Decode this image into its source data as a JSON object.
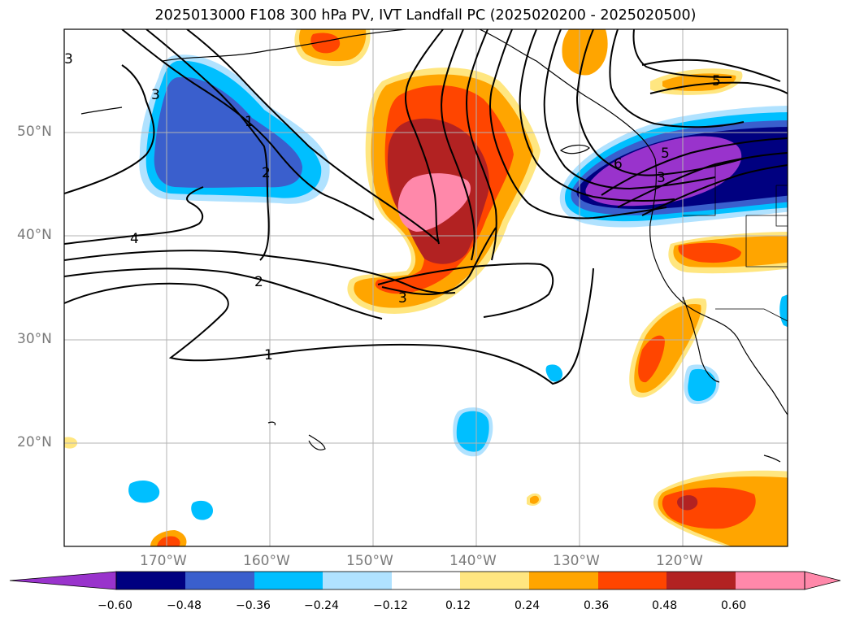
{
  "title": "2025013000 F108 300 hPa PV, IVT Landfall PC (2025020200 - 2025020500)",
  "latitude_labels": [
    "50°N",
    "40°N",
    "30°N",
    "20°N"
  ],
  "longitude_labels": [
    "170°W",
    "160°W",
    "150°W",
    "140°W",
    "130°W",
    "120°W"
  ],
  "pv_contour_labels": [
    "1",
    "2",
    "3",
    "4",
    "5",
    "6"
  ],
  "colorbar": {
    "ticks": [
      "−0.60",
      "−0.48",
      "−0.36",
      "−0.24",
      "−0.12",
      "0.12",
      "0.24",
      "0.36",
      "0.48",
      "0.60"
    ],
    "colors": [
      "#9933cc",
      "#000080",
      "#3a5fcd",
      "#00bfff",
      "#b0e2ff",
      "#ffffff",
      "#ffe680",
      "#ffa500",
      "#ff4500",
      "#b22222",
      "#ff88aa"
    ],
    "extend": "both"
  }
}
